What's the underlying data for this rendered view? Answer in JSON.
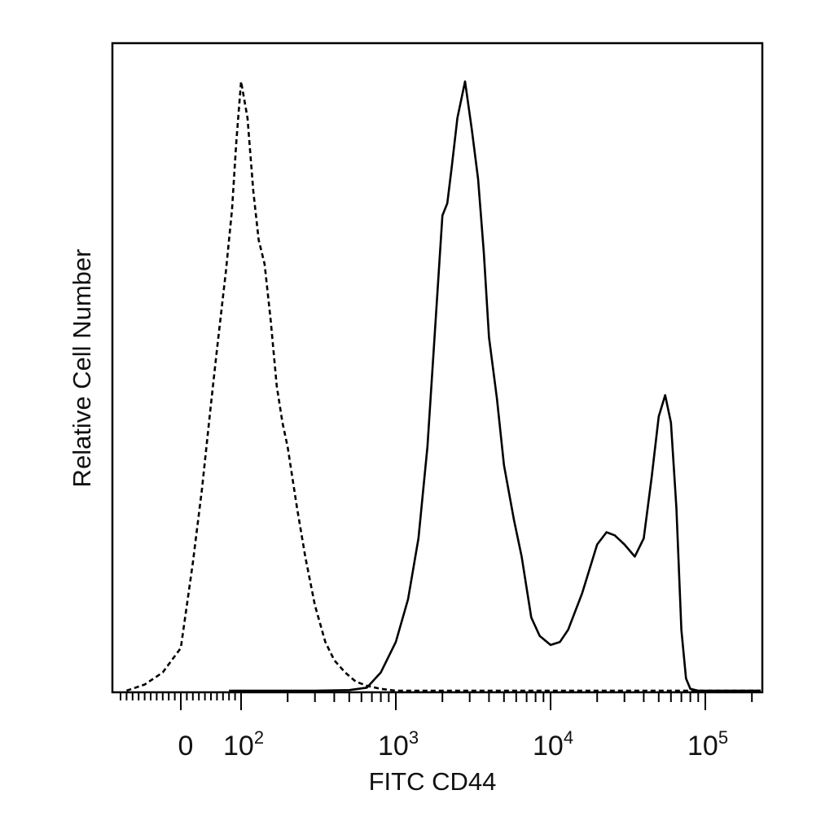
{
  "chart_data": {
    "type": "line",
    "xlabel": "FITC CD44",
    "ylabel": "Relative Cell Number",
    "x_scale": "biexponential",
    "x_tick_labels": [
      {
        "value": 0,
        "base": "0",
        "exp": ""
      },
      {
        "value": 100,
        "base": "10",
        "exp": "2"
      },
      {
        "value": 1000,
        "base": "10",
        "exp": "3"
      },
      {
        "value": 10000,
        "base": "10",
        "exp": "4"
      },
      {
        "value": 100000,
        "base": "10",
        "exp": "5"
      }
    ],
    "xlim": [
      -200,
      250000
    ],
    "ylim": [
      0,
      100
    ],
    "y_ticks": "none",
    "grid": false,
    "legend": "none",
    "series": [
      {
        "style": "dashed",
        "color": "#000000",
        "points": [
          [
            -90,
            0
          ],
          [
            -60,
            1
          ],
          [
            -30,
            3
          ],
          [
            0,
            7
          ],
          [
            10,
            14
          ],
          [
            20,
            21
          ],
          [
            35,
            33
          ],
          [
            50,
            47
          ],
          [
            60,
            56
          ],
          [
            75,
            69
          ],
          [
            85,
            79
          ],
          [
            92,
            90
          ],
          [
            100,
            100
          ],
          [
            110,
            94
          ],
          [
            120,
            82
          ],
          [
            130,
            74
          ],
          [
            142,
            70
          ],
          [
            155,
            61
          ],
          [
            170,
            50
          ],
          [
            185,
            44
          ],
          [
            200,
            40
          ],
          [
            230,
            30
          ],
          [
            260,
            22
          ],
          [
            300,
            14
          ],
          [
            350,
            8
          ],
          [
            400,
            5
          ],
          [
            470,
            3
          ],
          [
            550,
            1.5
          ],
          [
            650,
            0.8
          ],
          [
            800,
            0.3
          ],
          [
            1000,
            0
          ],
          [
            100000,
            0
          ],
          [
            250000,
            0
          ]
        ]
      },
      {
        "style": "solid",
        "color": "#000000",
        "points": [
          [
            80,
            0
          ],
          [
            300,
            0
          ],
          [
            500,
            0.1
          ],
          [
            650,
            0.5
          ],
          [
            800,
            3
          ],
          [
            1000,
            8
          ],
          [
            1200,
            15
          ],
          [
            1400,
            25
          ],
          [
            1600,
            40
          ],
          [
            1800,
            60
          ],
          [
            2000,
            78
          ],
          [
            2150,
            80
          ],
          [
            2300,
            86
          ],
          [
            2500,
            94
          ],
          [
            2800,
            100
          ],
          [
            3100,
            92
          ],
          [
            3400,
            84
          ],
          [
            3700,
            72
          ],
          [
            4000,
            58
          ],
          [
            4500,
            48
          ],
          [
            5000,
            37
          ],
          [
            5800,
            28
          ],
          [
            6500,
            22
          ],
          [
            7500,
            12
          ],
          [
            8500,
            9
          ],
          [
            10000,
            7.5
          ],
          [
            11500,
            8
          ],
          [
            13000,
            10
          ],
          [
            16000,
            16
          ],
          [
            20000,
            24
          ],
          [
            23000,
            26
          ],
          [
            26000,
            25.5
          ],
          [
            30000,
            24
          ],
          [
            35000,
            22
          ],
          [
            40000,
            25
          ],
          [
            45000,
            35
          ],
          [
            50000,
            45
          ],
          [
            55000,
            48.5
          ],
          [
            60000,
            44
          ],
          [
            65000,
            30
          ],
          [
            70000,
            10
          ],
          [
            75000,
            2
          ],
          [
            80000,
            0.3
          ],
          [
            90000,
            0
          ],
          [
            250000,
            0
          ]
        ]
      }
    ]
  }
}
